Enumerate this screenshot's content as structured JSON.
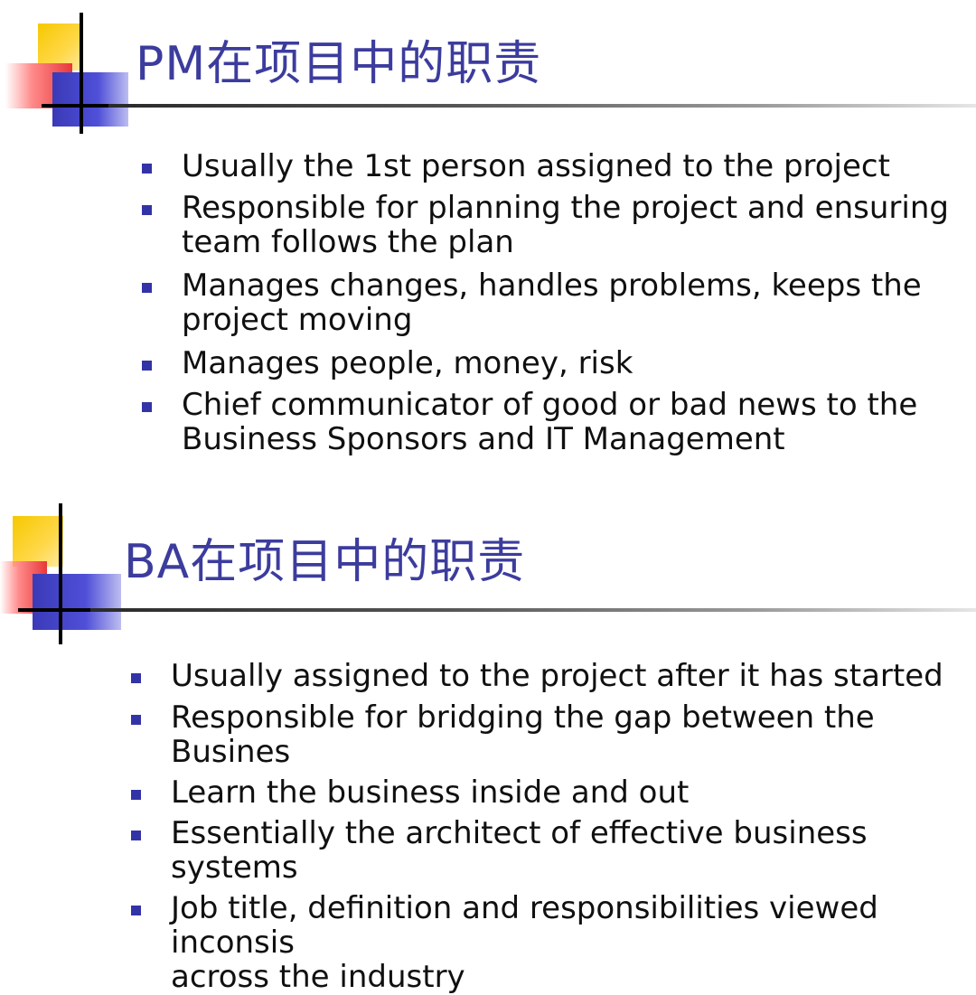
{
  "slides": [
    {
      "title_latin": "PM",
      "title_cjk": "在项目中的职责",
      "bullets": [
        "Usually the 1st person assigned to the project",
        "Responsible for planning the project and ensuring\nteam follows the plan",
        "Manages changes, handles problems, keeps the\nproject moving",
        "Manages people, money, risk",
        "Chief communicator of good or bad news to the\nBusiness Sponsors and IT Management"
      ]
    },
    {
      "title_latin": "BA",
      "title_cjk": "在项目中的职责",
      "bullets": [
        "Usually assigned to the project after it has started",
        "Responsible for bridging the gap between the Busines",
        "Learn the business inside and out",
        "Essentially the architect of effective business systems",
        "Job title, definition and responsibilities viewed inconsis\nacross the industry"
      ]
    }
  ],
  "colors": {
    "title": "#3c3c9e",
    "bullet": "#3333a8",
    "deco_yellow": "#f6c800",
    "deco_red": "#e8383a",
    "deco_blue": "#3a3ab8"
  }
}
